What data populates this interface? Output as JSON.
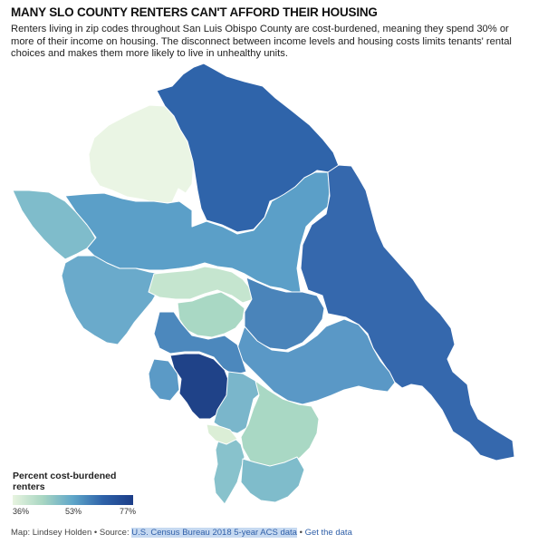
{
  "header": {
    "title": "MANY SLO COUNTY RENTERS CAN'T AFFORD THEIR HOUSING",
    "subtitle": "Renters living in zip codes throughout San Luis Obispo County are cost-burdened, meaning they spend 30% or more of their income on housing. The disconnect between income levels and housing costs limits tenants' rental choices and makes them more likely to live in unhealthy units."
  },
  "legend": {
    "title": "Percent cost-burdened renters",
    "min_label": "36%",
    "mid_label": "53%",
    "max_label": "77%",
    "colors": [
      "#e8f4e0",
      "#a8d6c2",
      "#5fa6c9",
      "#2e62a9",
      "#1c3d87"
    ]
  },
  "footer": {
    "credit": "Map: Lindsey Holden • Source: ",
    "source": "U.S. Census Bureau 2018 5-year ACS data",
    "separator": " • ",
    "link": "Get the data"
  },
  "map": {
    "zip_areas": [
      {
        "id": "northwest-pale",
        "color": "#eaf5e4"
      },
      {
        "id": "north-east",
        "color": "#2f64aa"
      },
      {
        "id": "coast-north",
        "color": "#7fbccb"
      },
      {
        "id": "north-central",
        "color": "#5b9fc8"
      },
      {
        "id": "east-large",
        "color": "#3568ad"
      },
      {
        "id": "central-west",
        "color": "#6aaacb"
      },
      {
        "id": "central-pale",
        "color": "#c5e5cf"
      },
      {
        "id": "central-green",
        "color": "#a9d8c4"
      },
      {
        "id": "central-east",
        "color": "#4a84ba"
      },
      {
        "id": "central-mid",
        "color": "#5a98c6"
      },
      {
        "id": "coast-mid",
        "color": "#4c88bd"
      },
      {
        "id": "coast-left",
        "color": "#5b9ac6"
      },
      {
        "id": "slo-city",
        "color": "#1f4288"
      },
      {
        "id": "south-mid",
        "color": "#7ab6cb"
      },
      {
        "id": "south-green",
        "color": "#a9d8c4"
      },
      {
        "id": "southeast",
        "color": "#3d73b3"
      },
      {
        "id": "south-coast",
        "color": "#88c2cc"
      },
      {
        "id": "south-tip",
        "color": "#7fbccb"
      },
      {
        "id": "small-pale",
        "color": "#dbeed6"
      }
    ]
  }
}
